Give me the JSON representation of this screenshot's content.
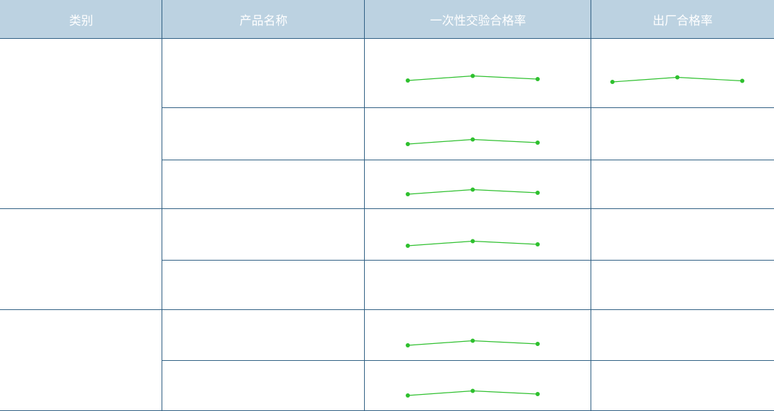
{
  "table": {
    "headers": [
      {
        "key": "category",
        "label": "类别"
      },
      {
        "key": "product_name",
        "label": "产品名称"
      },
      {
        "key": "first_pass_rate",
        "label": "一次性交验合格率"
      },
      {
        "key": "factory_pass_rate",
        "label": "出厂合格率"
      }
    ],
    "groups": [
      {
        "category": "",
        "rows": [
          {
            "product_name": "",
            "first_pass_trend": [
              0.2,
              0.85,
              0.4
            ],
            "factory_trend": [
              0.2,
              0.85,
              0.35
            ]
          },
          {
            "product_name": "",
            "first_pass_trend": [
              0.2,
              0.85,
              0.4
            ],
            "factory_trend": null
          },
          {
            "product_name": "",
            "first_pass_trend": [
              0.2,
              0.85,
              0.4
            ],
            "factory_trend": null
          }
        ]
      },
      {
        "category": "",
        "rows": [
          {
            "product_name": "",
            "first_pass_trend": [
              0.2,
              0.85,
              0.4
            ],
            "factory_trend": null
          },
          {
            "product_name": "",
            "first_pass_trend": null,
            "factory_trend": null
          }
        ]
      },
      {
        "category": "",
        "rows": [
          {
            "product_name": "",
            "first_pass_trend": [
              0.2,
              0.85,
              0.4
            ],
            "factory_trend": null
          },
          {
            "product_name": "",
            "first_pass_trend": [
              0.2,
              0.85,
              0.4
            ],
            "factory_trend": null
          }
        ]
      }
    ]
  },
  "colors": {
    "header_bg": "#bcd2e1",
    "header_text": "#ffffff",
    "grid_line": "#2f5f83",
    "sparkline": "#2ec02e"
  }
}
